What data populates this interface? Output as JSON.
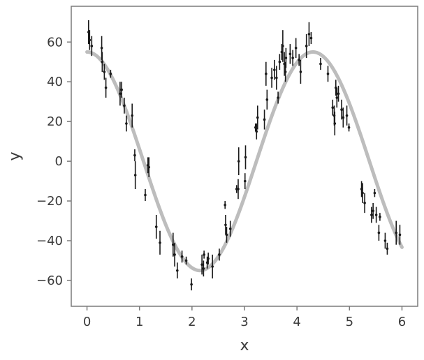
{
  "chart_data": {
    "type": "scatter",
    "title": "",
    "xlabel": "x",
    "ylabel": "y",
    "xlim": [
      -0.3,
      6.3
    ],
    "ylim": [
      -73,
      78
    ],
    "xticks": [
      0,
      1,
      2,
      3,
      4,
      5,
      6
    ],
    "yticks": [
      -60,
      -40,
      -20,
      0,
      20,
      40,
      60
    ],
    "grid": false,
    "legend": "none",
    "colors": {
      "points": "#1a1a1a",
      "curve": "#bdbdbd",
      "axes": "#7a7a7a",
      "text": "#3a3a3a"
    },
    "model_curve": {
      "form": "sine",
      "amplitude": 55,
      "frequency": 0.73,
      "phase": 1.57,
      "x_range": [
        0,
        6
      ]
    },
    "points": [
      {
        "x": 0.03,
        "y": 65,
        "err": 6
      },
      {
        "x": 0.05,
        "y": 61,
        "err": 5
      },
      {
        "x": 0.09,
        "y": 58,
        "err": 5
      },
      {
        "x": 0.28,
        "y": 57,
        "err": 6
      },
      {
        "x": 0.29,
        "y": 50,
        "err": 5
      },
      {
        "x": 0.33,
        "y": 45,
        "err": 4
      },
      {
        "x": 0.36,
        "y": 37,
        "err": 5
      },
      {
        "x": 0.45,
        "y": 44,
        "err": 2
      },
      {
        "x": 0.63,
        "y": 34,
        "err": 6
      },
      {
        "x": 0.66,
        "y": 36,
        "err": 4
      },
      {
        "x": 0.71,
        "y": 28,
        "err": 4
      },
      {
        "x": 0.75,
        "y": 19,
        "err": 4
      },
      {
        "x": 0.86,
        "y": 23,
        "err": 6
      },
      {
        "x": 0.91,
        "y": 3,
        "err": 3
      },
      {
        "x": 0.92,
        "y": -7,
        "err": 7
      },
      {
        "x": 1.11,
        "y": -17,
        "err": 3
      },
      {
        "x": 1.16,
        "y": -2,
        "err": 4
      },
      {
        "x": 1.18,
        "y": -3,
        "err": 5
      },
      {
        "x": 1.32,
        "y": -33,
        "err": 6
      },
      {
        "x": 1.39,
        "y": -41,
        "err": 6
      },
      {
        "x": 1.64,
        "y": -42,
        "err": 6
      },
      {
        "x": 1.67,
        "y": -47,
        "err": 6
      },
      {
        "x": 1.72,
        "y": -55,
        "err": 4
      },
      {
        "x": 1.81,
        "y": -48,
        "err": 3
      },
      {
        "x": 1.89,
        "y": -50,
        "err": 2
      },
      {
        "x": 1.99,
        "y": -62,
        "err": 3
      },
      {
        "x": 2.19,
        "y": -52,
        "err": 5
      },
      {
        "x": 2.22,
        "y": -54,
        "err": 4
      },
      {
        "x": 2.23,
        "y": -47,
        "err": 2
      },
      {
        "x": 2.29,
        "y": -51,
        "err": 3
      },
      {
        "x": 2.31,
        "y": -49,
        "err": 3
      },
      {
        "x": 2.39,
        "y": -53,
        "err": 6
      },
      {
        "x": 2.52,
        "y": -47,
        "err": 3
      },
      {
        "x": 2.63,
        "y": -22,
        "err": 2
      },
      {
        "x": 2.64,
        "y": -32,
        "err": 5
      },
      {
        "x": 2.66,
        "y": -37,
        "err": 4
      },
      {
        "x": 2.73,
        "y": -34,
        "err": 4
      },
      {
        "x": 2.85,
        "y": -14,
        "err": 2
      },
      {
        "x": 2.88,
        "y": -14,
        "err": 5
      },
      {
        "x": 2.89,
        "y": 0,
        "err": 7
      },
      {
        "x": 3.01,
        "y": -10,
        "err": 4
      },
      {
        "x": 3.02,
        "y": 2,
        "err": 6
      },
      {
        "x": 3.21,
        "y": 17,
        "err": 2
      },
      {
        "x": 3.23,
        "y": 15,
        "err": 4
      },
      {
        "x": 3.25,
        "y": 22,
        "err": 6
      },
      {
        "x": 3.38,
        "y": 21,
        "err": 5
      },
      {
        "x": 3.41,
        "y": 44,
        "err": 6
      },
      {
        "x": 3.43,
        "y": 31,
        "err": 5
      },
      {
        "x": 3.52,
        "y": 42,
        "err": 5
      },
      {
        "x": 3.57,
        "y": 46,
        "err": 5
      },
      {
        "x": 3.61,
        "y": 42,
        "err": 6
      },
      {
        "x": 3.64,
        "y": 32,
        "err": 3
      },
      {
        "x": 3.67,
        "y": 50,
        "err": 4
      },
      {
        "x": 3.71,
        "y": 55,
        "err": 4
      },
      {
        "x": 3.73,
        "y": 58,
        "err": 8
      },
      {
        "x": 3.76,
        "y": 49,
        "err": 6
      },
      {
        "x": 3.78,
        "y": 45,
        "err": 5
      },
      {
        "x": 3.79,
        "y": 52,
        "err": 5
      },
      {
        "x": 3.87,
        "y": 54,
        "err": 5
      },
      {
        "x": 3.92,
        "y": 52,
        "err": 4
      },
      {
        "x": 3.98,
        "y": 57,
        "err": 5
      },
      {
        "x": 4.04,
        "y": 51,
        "err": 3
      },
      {
        "x": 4.07,
        "y": 45,
        "err": 6
      },
      {
        "x": 4.18,
        "y": 58,
        "err": 6
      },
      {
        "x": 4.23,
        "y": 64,
        "err": 6
      },
      {
        "x": 4.27,
        "y": 62,
        "err": 3
      },
      {
        "x": 4.45,
        "y": 49,
        "err": 3
      },
      {
        "x": 4.59,
        "y": 44,
        "err": 4
      },
      {
        "x": 4.68,
        "y": 27,
        "err": 4
      },
      {
        "x": 4.71,
        "y": 23,
        "err": 5
      },
      {
        "x": 4.72,
        "y": 19,
        "err": 6
      },
      {
        "x": 4.74,
        "y": 37,
        "err": 4
      },
      {
        "x": 4.76,
        "y": 32,
        "err": 5
      },
      {
        "x": 4.79,
        "y": 34,
        "err": 4
      },
      {
        "x": 4.85,
        "y": 26,
        "err": 5
      },
      {
        "x": 4.88,
        "y": 22,
        "err": 5
      },
      {
        "x": 4.95,
        "y": 23,
        "err": 5
      },
      {
        "x": 4.99,
        "y": 17,
        "err": 2
      },
      {
        "x": 5.23,
        "y": -14,
        "err": 4
      },
      {
        "x": 5.25,
        "y": -16,
        "err": 5
      },
      {
        "x": 5.29,
        "y": -21,
        "err": 5
      },
      {
        "x": 5.42,
        "y": -27,
        "err": 4
      },
      {
        "x": 5.45,
        "y": -25,
        "err": 4
      },
      {
        "x": 5.48,
        "y": -16,
        "err": 2
      },
      {
        "x": 5.51,
        "y": -27,
        "err": 4
      },
      {
        "x": 5.56,
        "y": -36,
        "err": 4
      },
      {
        "x": 5.58,
        "y": -28,
        "err": 2
      },
      {
        "x": 5.68,
        "y": -40,
        "err": 4
      },
      {
        "x": 5.72,
        "y": -44,
        "err": 3
      },
      {
        "x": 5.89,
        "y": -36,
        "err": 6
      },
      {
        "x": 5.96,
        "y": -37,
        "err": 5
      }
    ]
  }
}
